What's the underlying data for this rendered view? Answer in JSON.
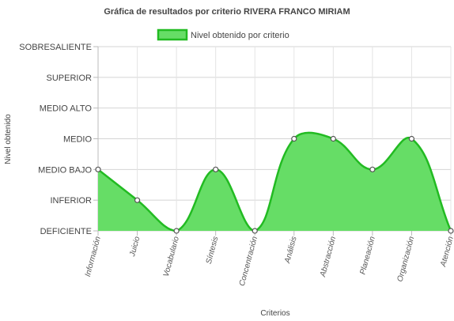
{
  "chart_data": {
    "type": "area",
    "title": "Gráfica de resultados por criterio RIVERA FRANCO MIRIAM",
    "xlabel": "Criterios",
    "ylabel": "Nivel obtenido",
    "legend": {
      "label": "Nivel obtenido por criterio",
      "position": "top"
    },
    "y_levels": [
      "DEFICIENTE",
      "INFERIOR",
      "MEDIO BAJO",
      "MEDIO",
      "MEDIO ALTO",
      "SUPERIOR",
      "SOBRESALIENTE"
    ],
    "ylim": [
      0,
      6
    ],
    "categories": [
      "Información",
      "Juicio",
      "Vocabulario",
      "Síntesis",
      "Concentración",
      "Análisis",
      "Abstracción",
      "Planeación",
      "Organización",
      "Atención"
    ],
    "series": [
      {
        "name": "Nivel obtenido por criterio",
        "values": [
          2,
          1,
          0,
          2,
          0,
          3,
          3,
          2,
          3,
          0
        ],
        "fill_color": "#66dd66",
        "line_color": "#22bb22"
      }
    ],
    "grid": true
  }
}
